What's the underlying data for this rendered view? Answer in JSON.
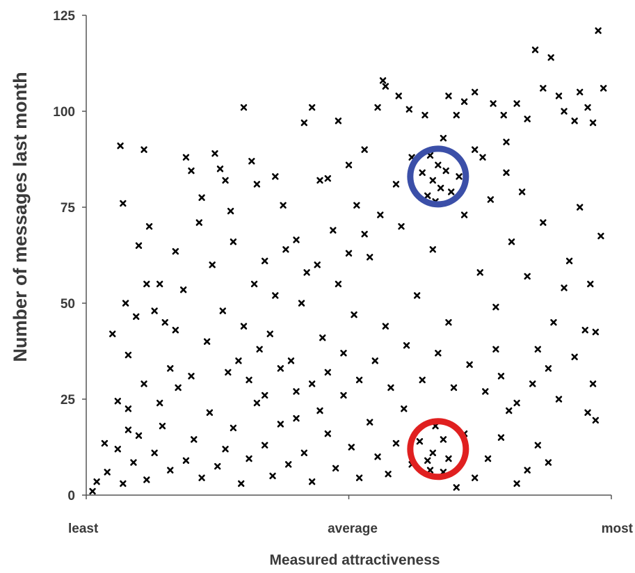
{
  "chart_data": {
    "type": "scatter",
    "title": "",
    "xlabel": "Measured attractiveness",
    "ylabel": "Number of messages last month",
    "xlim": [
      0,
      100
    ],
    "ylim": [
      0,
      125
    ],
    "yticks": [
      {
        "value": 0,
        "label": "0"
      },
      {
        "value": 25,
        "label": "25"
      },
      {
        "value": 50,
        "label": "50"
      },
      {
        "value": 75,
        "label": "75"
      },
      {
        "value": 100,
        "label": "100"
      },
      {
        "value": 125,
        "label": "125"
      }
    ],
    "xticks": [
      {
        "value": 0,
        "label": "least"
      },
      {
        "value": 50,
        "label": "average"
      },
      {
        "value": 100,
        "label": "most"
      }
    ],
    "grid": false,
    "legend": "none",
    "marker_color": "#000000",
    "annotations": [
      {
        "type": "circle",
        "x": 67,
        "y": 83,
        "color": "#3b4fa8"
      },
      {
        "type": "circle",
        "x": 67,
        "y": 12,
        "color": "#e02020"
      }
    ],
    "points": [
      [
        1.2,
        1.0
      ],
      [
        2.0,
        3.5
      ],
      [
        3.5,
        13.5
      ],
      [
        4.0,
        6.0
      ],
      [
        5.0,
        42.0
      ],
      [
        6.0,
        24.5
      ],
      [
        6.5,
        91.0
      ],
      [
        7.0,
        76.0
      ],
      [
        7.5,
        50.0
      ],
      [
        8.0,
        36.5
      ],
      [
        9.5,
        46.5
      ],
      [
        10.0,
        65.0
      ],
      [
        11.0,
        90.0
      ],
      [
        11.5,
        55.0
      ],
      [
        12.0,
        70.0
      ],
      [
        13.0,
        48.0
      ],
      [
        14.0,
        55.0
      ],
      [
        15.0,
        45.0
      ],
      [
        16.0,
        33.0
      ],
      [
        17.0,
        63.5
      ],
      [
        18.5,
        53.5
      ],
      [
        19.0,
        88.0
      ],
      [
        20.0,
        84.5
      ],
      [
        21.5,
        71.0
      ],
      [
        22.0,
        77.5
      ],
      [
        24.5,
        89.0
      ],
      [
        25.5,
        85.0
      ],
      [
        26.5,
        82.0
      ],
      [
        27.5,
        74.0
      ],
      [
        28.0,
        66.0
      ],
      [
        30.0,
        101.0
      ],
      [
        31.5,
        87.0
      ],
      [
        32.5,
        81.0
      ],
      [
        34.0,
        61.0
      ],
      [
        36.0,
        83.0
      ],
      [
        37.5,
        75.5
      ],
      [
        40.0,
        66.5
      ],
      [
        41.5,
        97.0
      ],
      [
        43.0,
        101.0
      ],
      [
        44.5,
        82.0
      ],
      [
        46.0,
        82.5
      ],
      [
        48.0,
        97.5
      ],
      [
        50.0,
        86.0
      ],
      [
        51.5,
        75.5
      ],
      [
        53.0,
        90.0
      ],
      [
        55.5,
        101.0
      ],
      [
        56.5,
        108.0
      ],
      [
        57.0,
        106.5
      ],
      [
        59.5,
        104.0
      ],
      [
        61.5,
        100.5
      ],
      [
        64.5,
        99.0
      ],
      [
        66.0,
        82.0
      ],
      [
        67.0,
        86.0
      ],
      [
        69.0,
        104.0
      ],
      [
        70.5,
        99.0
      ],
      [
        72.0,
        102.5
      ],
      [
        74.0,
        105.0
      ],
      [
        75.5,
        88.0
      ],
      [
        77.5,
        102.0
      ],
      [
        79.5,
        99.0
      ],
      [
        80.0,
        92.0
      ],
      [
        82.0,
        102.0
      ],
      [
        84.0,
        98.0
      ],
      [
        85.5,
        116.0
      ],
      [
        87.0,
        106.0
      ],
      [
        88.5,
        114.0
      ],
      [
        90.0,
        104.0
      ],
      [
        91.0,
        100.0
      ],
      [
        93.0,
        97.5
      ],
      [
        94.0,
        105.0
      ],
      [
        95.5,
        101.0
      ],
      [
        96.5,
        97.0
      ],
      [
        97.5,
        121.0
      ],
      [
        98.5,
        106.0
      ],
      [
        98.0,
        67.5
      ],
      [
        96.0,
        55.0
      ],
      [
        95.0,
        43.0
      ],
      [
        97.0,
        42.5
      ],
      [
        94.0,
        75.0
      ],
      [
        92.0,
        61.0
      ],
      [
        91.0,
        54.0
      ],
      [
        93.0,
        36.0
      ],
      [
        96.5,
        29.0
      ],
      [
        97.0,
        19.5
      ],
      [
        95.5,
        21.5
      ],
      [
        90.0,
        25.0
      ],
      [
        88.0,
        8.5
      ],
      [
        86.0,
        13.0
      ],
      [
        84.0,
        6.5
      ],
      [
        82.0,
        3.0
      ],
      [
        80.5,
        22.0
      ],
      [
        79.0,
        15.0
      ],
      [
        78.0,
        38.0
      ],
      [
        76.5,
        9.5
      ],
      [
        74.0,
        4.5
      ],
      [
        72.0,
        16.0
      ],
      [
        70.5,
        2.0
      ],
      [
        68.0,
        6.0
      ],
      [
        66.5,
        18.0
      ],
      [
        65.0,
        9.0
      ],
      [
        63.5,
        14.0
      ],
      [
        62.0,
        8.0
      ],
      [
        60.5,
        22.5
      ],
      [
        59.0,
        13.5
      ],
      [
        57.5,
        5.5
      ],
      [
        55.5,
        10.0
      ],
      [
        54.0,
        19.0
      ],
      [
        52.0,
        4.5
      ],
      [
        50.5,
        12.5
      ],
      [
        49.0,
        26.0
      ],
      [
        47.5,
        7.0
      ],
      [
        46.0,
        16.0
      ],
      [
        44.5,
        22.0
      ],
      [
        43.0,
        3.5
      ],
      [
        41.5,
        11.0
      ],
      [
        40.0,
        27.0
      ],
      [
        38.5,
        8.0
      ],
      [
        37.0,
        18.5
      ],
      [
        35.5,
        5.0
      ],
      [
        34.0,
        13.0
      ],
      [
        32.5,
        24.0
      ],
      [
        31.0,
        9.5
      ],
      [
        29.5,
        3.0
      ],
      [
        28.0,
        17.5
      ],
      [
        26.5,
        12.0
      ],
      [
        25.0,
        7.5
      ],
      [
        23.5,
        21.5
      ],
      [
        22.0,
        4.5
      ],
      [
        20.5,
        14.5
      ],
      [
        19.0,
        9.0
      ],
      [
        17.5,
        28.0
      ],
      [
        16.0,
        6.5
      ],
      [
        14.5,
        18.0
      ],
      [
        13.0,
        11.0
      ],
      [
        11.5,
        4.0
      ],
      [
        10.0,
        15.5
      ],
      [
        9.0,
        8.5
      ],
      [
        8.0,
        22.5
      ],
      [
        7.0,
        3.0
      ],
      [
        6.0,
        12.0
      ],
      [
        30.0,
        44.0
      ],
      [
        33.0,
        38.0
      ],
      [
        36.0,
        52.0
      ],
      [
        39.0,
        35.0
      ],
      [
        42.0,
        58.0
      ],
      [
        45.0,
        41.0
      ],
      [
        48.0,
        55.0
      ],
      [
        51.0,
        47.0
      ],
      [
        54.0,
        62.0
      ],
      [
        57.0,
        44.0
      ],
      [
        60.0,
        70.0
      ],
      [
        63.0,
        52.0
      ],
      [
        66.0,
        64.0
      ],
      [
        69.0,
        45.0
      ],
      [
        72.0,
        73.0
      ],
      [
        75.0,
        58.0
      ],
      [
        78.0,
        49.0
      ],
      [
        81.0,
        66.0
      ],
      [
        84.0,
        57.0
      ],
      [
        87.0,
        71.0
      ],
      [
        89.0,
        45.0
      ],
      [
        86.0,
        38.0
      ],
      [
        83.0,
        79.0
      ],
      [
        80.0,
        84.0
      ],
      [
        77.0,
        77.0
      ],
      [
        74.0,
        90.0
      ],
      [
        71.0,
        83.0
      ],
      [
        68.0,
        93.0
      ],
      [
        65.0,
        78.0
      ],
      [
        62.0,
        88.0
      ],
      [
        59.0,
        81.0
      ],
      [
        56.0,
        73.0
      ],
      [
        53.0,
        68.0
      ],
      [
        50.0,
        63.0
      ],
      [
        47.0,
        69.0
      ],
      [
        44.0,
        60.0
      ],
      [
        41.0,
        50.0
      ],
      [
        38.0,
        64.0
      ],
      [
        35.0,
        42.0
      ],
      [
        32.0,
        55.0
      ],
      [
        29.0,
        35.0
      ],
      [
        26.0,
        48.0
      ],
      [
        23.0,
        40.0
      ],
      [
        20.0,
        31.0
      ],
      [
        17.0,
        43.0
      ],
      [
        14.0,
        24.0
      ],
      [
        11.0,
        29.0
      ],
      [
        8.0,
        17.0
      ],
      [
        24.0,
        60.0
      ],
      [
        27.0,
        32.0
      ],
      [
        31.0,
        30.0
      ],
      [
        34.0,
        26.0
      ],
      [
        37.0,
        33.0
      ],
      [
        40.0,
        20.0
      ],
      [
        43.0,
        29.0
      ],
      [
        46.0,
        32.0
      ],
      [
        49.0,
        37.0
      ],
      [
        52.0,
        30.0
      ],
      [
        55.0,
        35.0
      ],
      [
        58.0,
        28.0
      ],
      [
        61.0,
        39.0
      ],
      [
        64.0,
        30.0
      ],
      [
        67.0,
        37.0
      ],
      [
        70.0,
        28.0
      ],
      [
        73.0,
        34.0
      ],
      [
        76.0,
        27.0
      ],
      [
        79.0,
        31.0
      ],
      [
        82.0,
        24.0
      ],
      [
        85.0,
        29.0
      ],
      [
        88.0,
        33.0
      ],
      [
        65.5,
        88.5
      ],
      [
        67.5,
        80.0
      ],
      [
        68.5,
        84.5
      ],
      [
        66.5,
        76.5
      ],
      [
        64.0,
        84.0
      ],
      [
        69.5,
        79.0
      ],
      [
        66.0,
        11.0
      ],
      [
        68.0,
        14.5
      ],
      [
        65.5,
        6.5
      ],
      [
        69.0,
        9.5
      ]
    ]
  }
}
